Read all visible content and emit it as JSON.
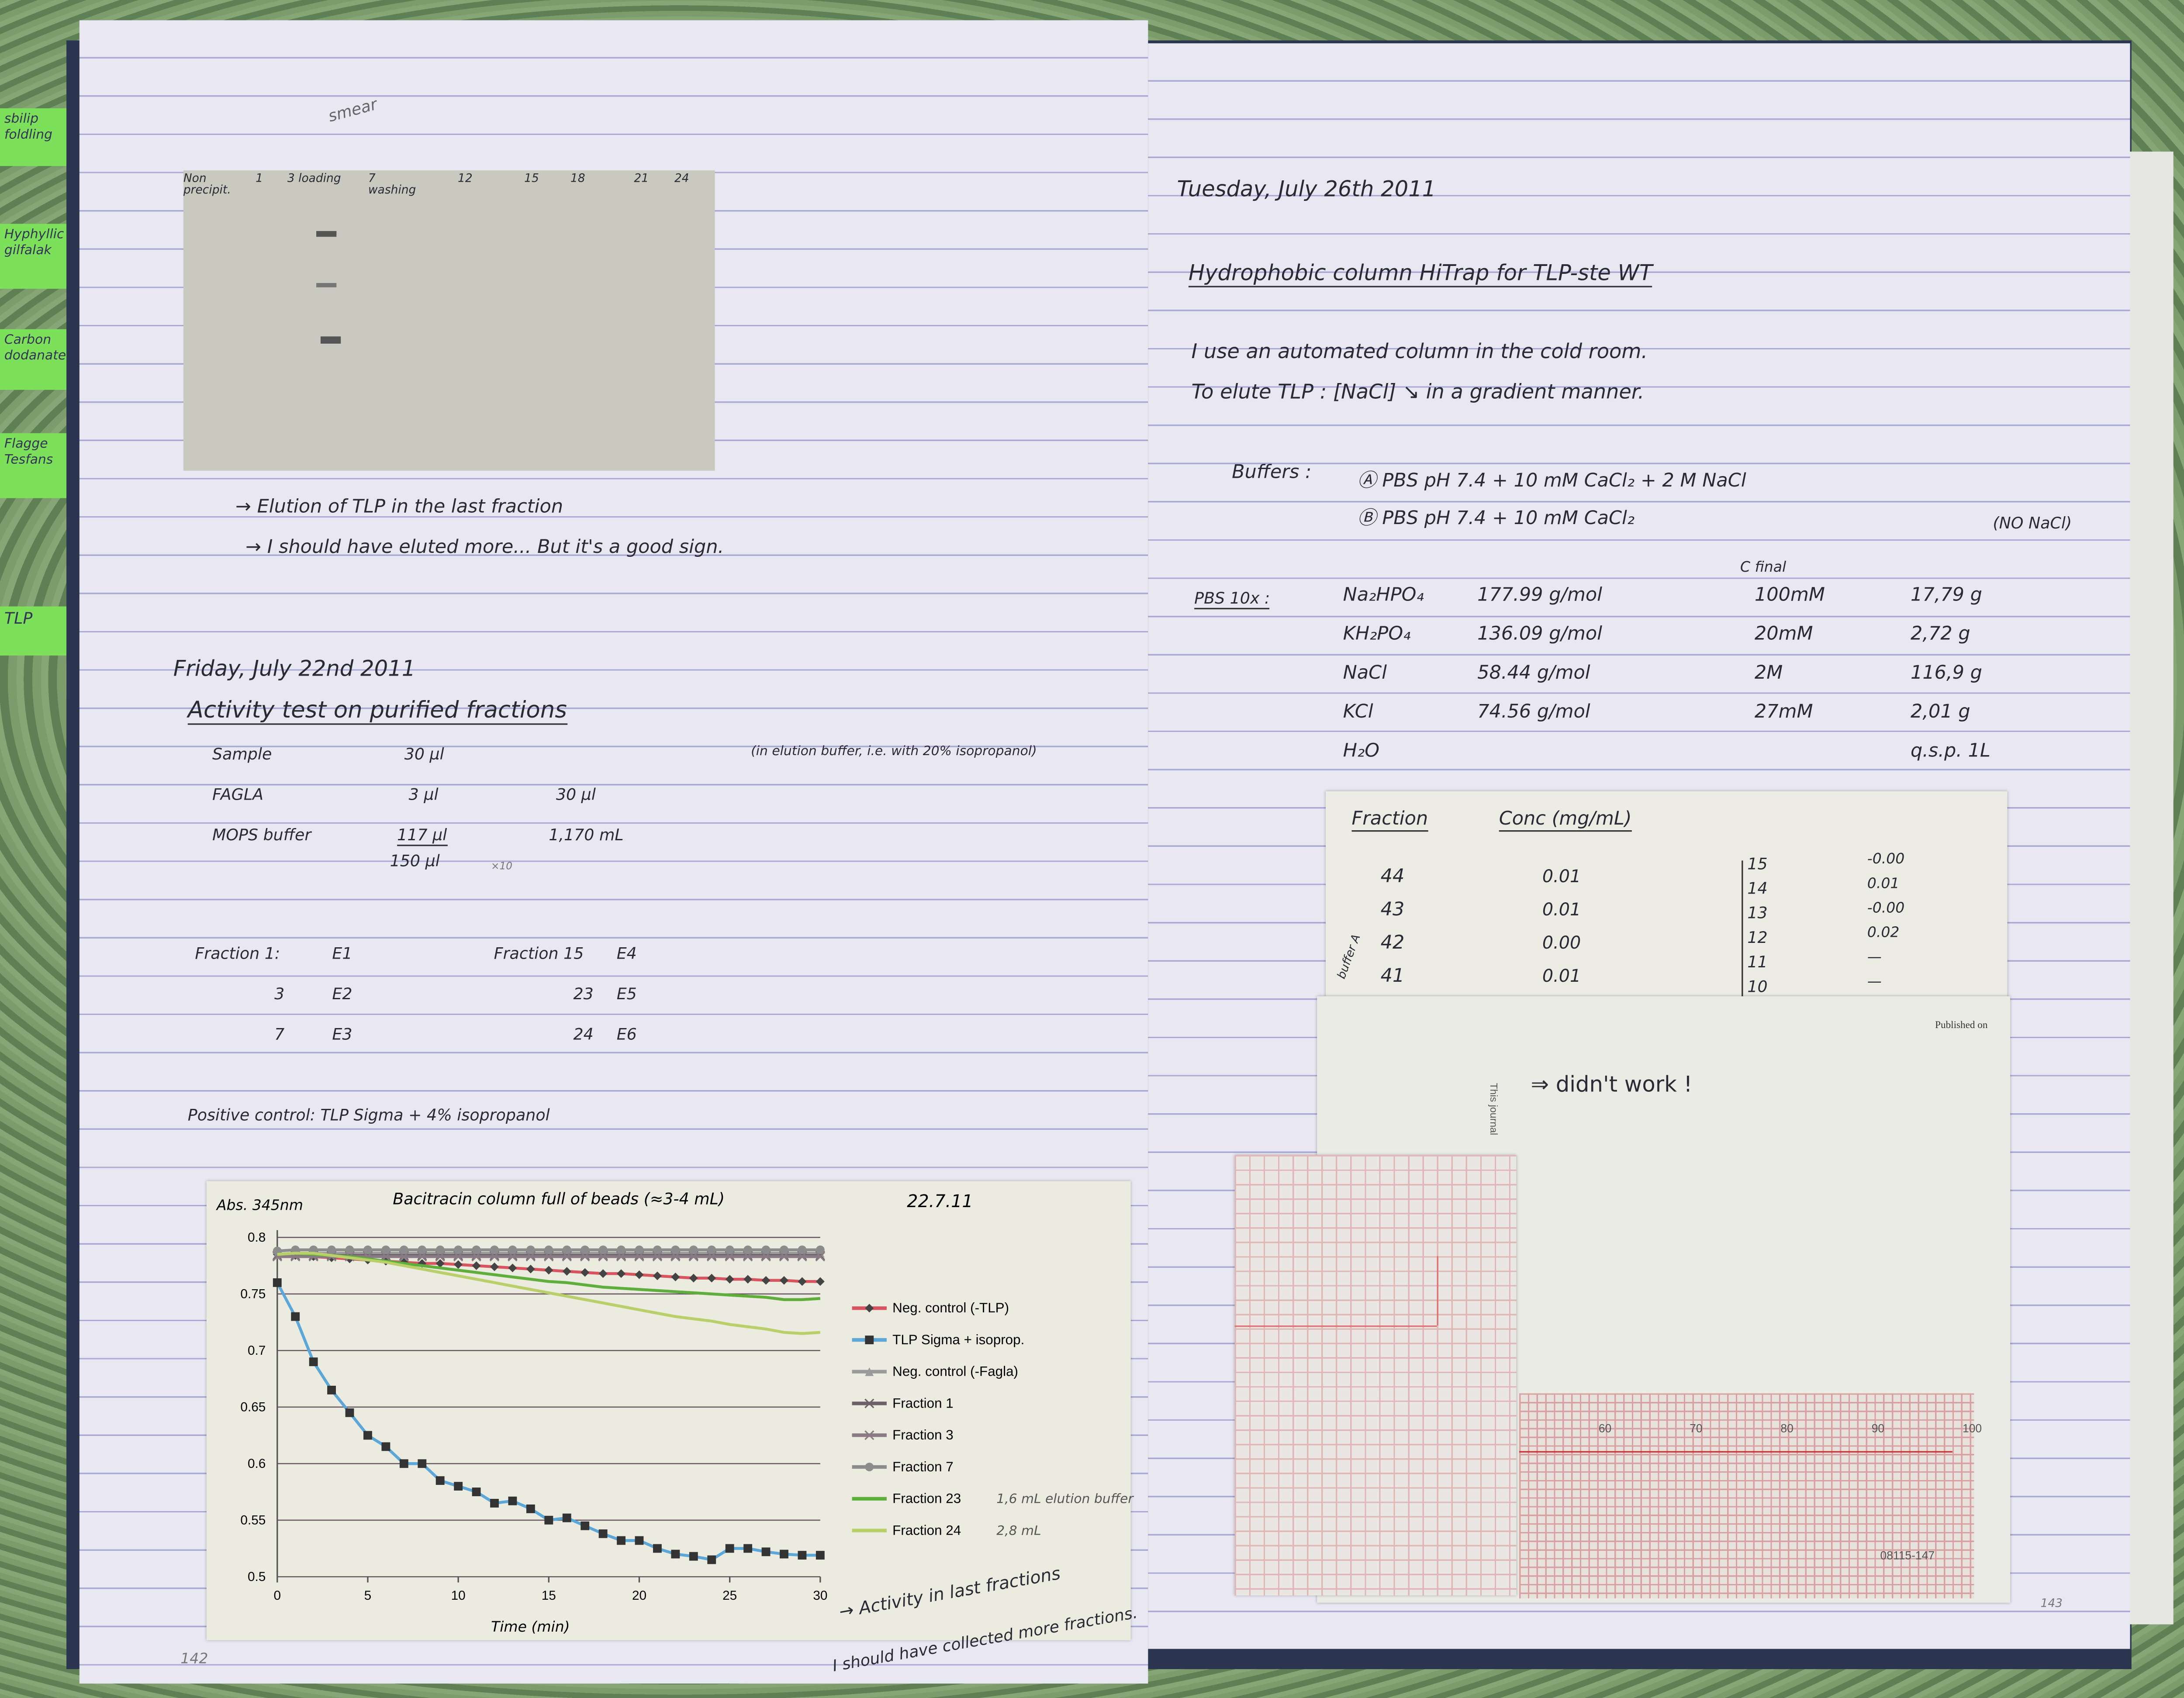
{
  "tabs": [
    "sbilip foldling",
    "Hyphyllic gilfalak",
    "Carbon dodanate",
    "Flagge Tesfans",
    "TLP"
  ],
  "left_page": {
    "gel": {
      "smear": "smear",
      "lanes": [
        "Non precipit.",
        "1",
        "3 loading",
        "7 washing",
        "12",
        "15",
        "18",
        "21",
        "24"
      ]
    },
    "notes": [
      "→ Elution of TLP in the last fraction",
      "→ I should have eluted more... But it's a good sign."
    ],
    "date": "Friday, July 22nd 2011",
    "heading": "Activity test on purified fractions",
    "rows": [
      {
        "label": "Sample",
        "a": "30 µl",
        "b": "",
        "note": "(in elution buffer, i.e. with 20% isopropanol)"
      },
      {
        "label": "FAGLA",
        "a": "3 µl",
        "b": "30 µl"
      },
      {
        "label": "MOPS buffer",
        "a": "117 µl",
        "b": "1,170 mL",
        "sub": "150 µl",
        "mult": "×10"
      }
    ],
    "fractions": [
      [
        "Fraction 1:",
        "E1",
        "Fraction 15",
        "E4"
      ],
      [
        "3",
        "E2",
        "23",
        "E5"
      ],
      [
        "7",
        "E3",
        "24",
        "E6"
      ]
    ],
    "positive_control": "Positive control: TLP Sigma + 4% isopropanol",
    "chart_note1": "→ Activity in last fractions",
    "chart_note2": "I should have collected more fractions.",
    "page_number": "142"
  },
  "chart_data": {
    "type": "line",
    "title": "Bacitracin column full of beads (≈3-4 mL)",
    "date": "22.7.11",
    "ylabel": "Abs. 345nm",
    "xlabel": "Time (min)",
    "xlim": [
      0,
      30
    ],
    "ylim": [
      0.5,
      0.8
    ],
    "xticks": [
      "0",
      "5",
      "10",
      "15",
      "20",
      "25",
      "30"
    ],
    "yticks": [
      "0.5",
      "0.55",
      "0.6",
      "0.65",
      "0.7",
      "0.75",
      "0.8"
    ],
    "grid": true,
    "legend": "right",
    "x": [
      0,
      1,
      2,
      3,
      4,
      5,
      6,
      7,
      8,
      9,
      10,
      11,
      12,
      13,
      14,
      15,
      16,
      17,
      18,
      19,
      20,
      21,
      22,
      23,
      24,
      25,
      26,
      27,
      28,
      29,
      30
    ],
    "series": [
      {
        "name": "Neg. control (-TLP)",
        "color": "#d9545f",
        "marker": "diamond",
        "values": [
          0.785,
          0.784,
          0.783,
          0.782,
          0.781,
          0.78,
          0.779,
          0.778,
          0.777,
          0.777,
          0.776,
          0.775,
          0.774,
          0.773,
          0.772,
          0.771,
          0.77,
          0.769,
          0.768,
          0.768,
          0.767,
          0.766,
          0.765,
          0.764,
          0.764,
          0.763,
          0.763,
          0.762,
          0.762,
          0.761,
          0.761
        ]
      },
      {
        "name": "TLP Sigma + isoprop.",
        "color": "#5aa7d8",
        "marker": "square",
        "values": [
          0.76,
          0.73,
          0.69,
          0.665,
          0.645,
          0.625,
          0.615,
          0.6,
          0.6,
          0.585,
          0.58,
          0.575,
          0.565,
          0.567,
          0.56,
          0.55,
          0.552,
          0.545,
          0.538,
          0.532,
          0.532,
          0.525,
          0.52,
          0.518,
          0.515,
          0.525,
          0.525,
          0.522,
          0.52,
          0.519,
          0.519
        ]
      },
      {
        "name": "Neg. control (-Fagla)",
        "color": "#9a9a9a",
        "marker": "triangle",
        "values": [
          0.785,
          0.786,
          0.786,
          0.786,
          0.786,
          0.786,
          0.786,
          0.786,
          0.786,
          0.786,
          0.786,
          0.786,
          0.786,
          0.786,
          0.786,
          0.786,
          0.786,
          0.786,
          0.786,
          0.786,
          0.786,
          0.786,
          0.786,
          0.786,
          0.786,
          0.786,
          0.786,
          0.786,
          0.786,
          0.786,
          0.786
        ]
      },
      {
        "name": "Fraction 1",
        "color": "#6e6068",
        "marker": "x",
        "values": [
          0.784,
          0.784,
          0.784,
          0.784,
          0.784,
          0.784,
          0.784,
          0.784,
          0.784,
          0.784,
          0.784,
          0.784,
          0.784,
          0.784,
          0.784,
          0.784,
          0.784,
          0.784,
          0.784,
          0.784,
          0.784,
          0.784,
          0.784,
          0.784,
          0.784,
          0.784,
          0.784,
          0.784,
          0.784,
          0.784,
          0.784
        ]
      },
      {
        "name": "Fraction 3",
        "color": "#8a7a84",
        "marker": "star",
        "values": [
          0.783,
          0.783,
          0.783,
          0.783,
          0.783,
          0.783,
          0.783,
          0.783,
          0.783,
          0.783,
          0.783,
          0.783,
          0.783,
          0.783,
          0.783,
          0.783,
          0.783,
          0.783,
          0.783,
          0.783,
          0.783,
          0.783,
          0.783,
          0.783,
          0.783,
          0.783,
          0.783,
          0.783,
          0.783,
          0.783,
          0.783
        ]
      },
      {
        "name": "Fraction 7",
        "color": "#8c8c8c",
        "marker": "circle",
        "values": [
          0.788,
          0.789,
          0.789,
          0.789,
          0.789,
          0.789,
          0.789,
          0.789,
          0.789,
          0.789,
          0.789,
          0.789,
          0.789,
          0.789,
          0.789,
          0.789,
          0.789,
          0.789,
          0.789,
          0.789,
          0.789,
          0.789,
          0.789,
          0.789,
          0.789,
          0.789,
          0.789,
          0.789,
          0.789,
          0.789,
          0.789
        ]
      },
      {
        "name": "Fraction 23",
        "color": "#5fae3c",
        "marker": "none",
        "note": "1,6 mL elution buffer",
        "values": [
          0.785,
          0.786,
          0.785,
          0.784,
          0.783,
          0.781,
          0.779,
          0.777,
          0.775,
          0.773,
          0.771,
          0.769,
          0.767,
          0.765,
          0.763,
          0.761,
          0.76,
          0.758,
          0.756,
          0.755,
          0.754,
          0.753,
          0.752,
          0.751,
          0.75,
          0.749,
          0.748,
          0.747,
          0.745,
          0.745,
          0.746
        ]
      },
      {
        "name": "Fraction 24",
        "color": "#b9cf6a",
        "marker": "none",
        "note": "2,8 mL",
        "values": [
          0.785,
          0.786,
          0.786,
          0.784,
          0.782,
          0.78,
          0.778,
          0.775,
          0.772,
          0.769,
          0.766,
          0.763,
          0.76,
          0.757,
          0.754,
          0.751,
          0.748,
          0.745,
          0.742,
          0.739,
          0.736,
          0.733,
          0.73,
          0.728,
          0.726,
          0.723,
          0.721,
          0.719,
          0.716,
          0.715,
          0.716
        ]
      }
    ]
  },
  "right_page": {
    "date": "Tuesday, July 26th 2011",
    "heading": "Hydrophobic column HiTrap for TLP-ste WT",
    "lines": [
      "I use an automated column in the cold room.",
      "To elute TLP : [NaCl] ↘ in a gradient manner."
    ],
    "buffers_label": "Buffers :",
    "buffer_a": "Ⓐ PBS pH 7.4 + 10 mM CaCl₂ + 2 M NaCl",
    "buffer_b": "Ⓑ PBS pH 7.4 + 10 mM CaCl₂",
    "no_nacl": "(NO NaCl)",
    "pbs_label": "PBS 10x :",
    "c_final": "C final",
    "pbs": [
      [
        "Na₂HPO₄",
        "177.99 g/mol",
        "100mM",
        "17,79 g"
      ],
      [
        "KH₂PO₄",
        "136.09 g/mol",
        "20mM",
        "2,72 g"
      ],
      [
        "NaCl",
        "58.44 g/mol",
        "2M",
        "116,9 g"
      ],
      [
        "KCl",
        "74.56 g/mol",
        "27mM",
        "2,01 g"
      ],
      [
        "H₂O",
        "",
        "",
        "q.s.p. 1L"
      ]
    ],
    "fraction_table": {
      "headers": [
        "Fraction",
        "Conc (mg/mL)"
      ],
      "side": "buffer A",
      "left": [
        [
          "44",
          "0.01"
        ],
        [
          "43",
          "0.01"
        ],
        [
          "42",
          "0.00"
        ],
        [
          "41",
          "0.01"
        ]
      ],
      "right": [
        [
          "15",
          "-0.00"
        ],
        [
          "14",
          "0.01"
        ],
        [
          "13",
          "-0.00"
        ],
        [
          "12",
          "0.02"
        ],
        [
          "11",
          "—"
        ],
        [
          "10",
          "—"
        ]
      ]
    },
    "article": {
      "published": "Published on",
      "journal": "This journal",
      "result": "⇒ didn't work !"
    },
    "chromatogram": {
      "ticks": [
        "60",
        "70",
        "80",
        "90",
        "100"
      ],
      "code": "08115-147"
    },
    "page_number": "143"
  }
}
